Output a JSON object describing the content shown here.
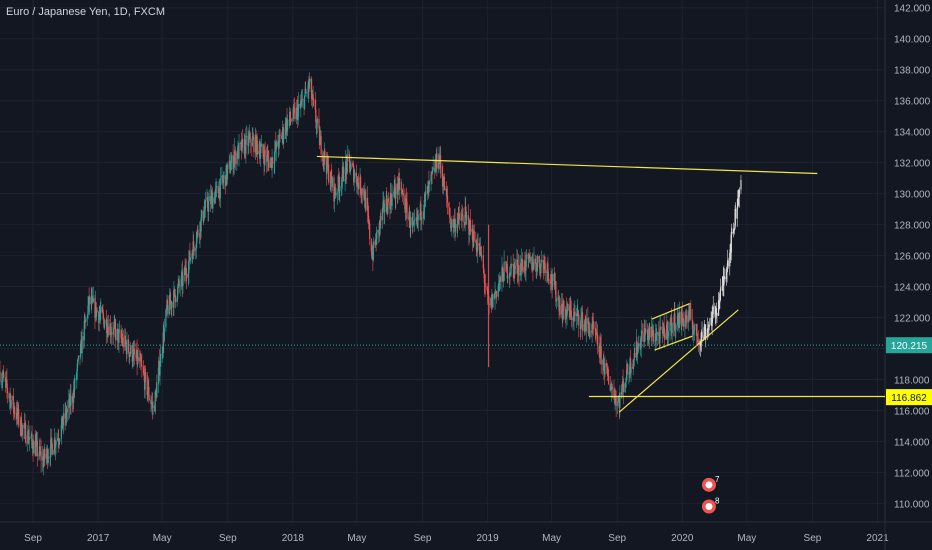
{
  "header": {
    "title": "Euro / Japanese Yen, 1D, FXCM"
  },
  "colors": {
    "background": "#131722",
    "grid": "#1e2230",
    "up": "#26a69a",
    "down": "#ef5350",
    "projection": "#d9d9d9",
    "trendline": "#f2e34c",
    "current_line": "#26a69a",
    "current_badge": "#26a69a",
    "level_badge": "#ffff00",
    "axis_text": "#b2b5be",
    "event_badge": "#ef5350"
  },
  "chart_data": {
    "type": "candlestick",
    "title": "Euro / Japanese Yen, 1D, FXCM",
    "y_axis": {
      "ticks": [
        "142.000",
        "140.000",
        "138.000",
        "136.000",
        "134.000",
        "132.000",
        "130.000",
        "128.000",
        "126.000",
        "124.000",
        "122.000",
        "120.000",
        "118.000",
        "116.000",
        "114.000",
        "112.000",
        "110.000"
      ],
      "range": [
        108.8,
        142.5
      ],
      "current_price": "120.215",
      "marked_level": "116.862"
    },
    "x_axis": {
      "labels": [
        "Sep",
        "2017",
        "May",
        "Sep",
        "2018",
        "May",
        "Sep",
        "2019",
        "May",
        "Sep",
        "2020",
        "May",
        "Sep",
        "2021"
      ],
      "start": "2016-07-01",
      "end": "2021-01-15"
    },
    "price_path": [
      [
        "2016-07-01",
        118.5
      ],
      [
        "2016-08-10",
        115.0
      ],
      [
        "2016-09-20",
        112.8
      ],
      [
        "2016-10-20",
        114.5
      ],
      [
        "2016-11-15",
        117.0
      ],
      [
        "2016-12-15",
        123.0
      ],
      [
        "2017-01-20",
        121.5
      ],
      [
        "2017-02-15",
        120.5
      ],
      [
        "2017-03-20",
        119.0
      ],
      [
        "2017-04-15",
        116.0
      ],
      [
        "2017-05-10",
        122.5
      ],
      [
        "2017-06-10",
        124.5
      ],
      [
        "2017-07-20",
        129.0
      ],
      [
        "2017-08-20",
        130.5
      ],
      [
        "2017-09-15",
        132.5
      ],
      [
        "2017-10-15",
        133.5
      ],
      [
        "2017-11-20",
        132.0
      ],
      [
        "2017-12-20",
        134.5
      ],
      [
        "2018-01-15",
        135.5
      ],
      [
        "2018-02-01",
        137.0
      ],
      [
        "2018-02-20",
        133.5
      ],
      [
        "2018-03-20",
        130.0
      ],
      [
        "2018-04-15",
        132.0
      ],
      [
        "2018-05-15",
        130.0
      ],
      [
        "2018-05-30",
        126.0
      ],
      [
        "2018-06-20",
        129.0
      ],
      [
        "2018-07-20",
        130.5
      ],
      [
        "2018-08-15",
        127.5
      ],
      [
        "2018-09-15",
        130.5
      ],
      [
        "2018-10-01",
        132.5
      ],
      [
        "2018-10-25",
        128.0
      ],
      [
        "2018-11-20",
        128.5
      ],
      [
        "2018-12-20",
        126.0
      ],
      [
        "2019-01-03",
        122.5
      ],
      [
        "2019-02-01",
        125.0
      ],
      [
        "2019-03-20",
        125.5
      ],
      [
        "2019-04-20",
        125.5
      ],
      [
        "2019-05-20",
        122.5
      ],
      [
        "2019-06-20",
        122.0
      ],
      [
        "2019-07-20",
        121.0
      ],
      [
        "2019-08-15",
        118.0
      ],
      [
        "2019-09-03",
        116.5
      ],
      [
        "2019-09-20",
        118.5
      ],
      [
        "2019-10-20",
        121.0
      ],
      [
        "2019-11-20",
        120.8
      ],
      [
        "2019-12-20",
        121.8
      ],
      [
        "2020-01-15",
        122.0
      ],
      [
        "2020-02-01",
        120.5
      ]
    ],
    "projection_path": [
      [
        "2020-02-01",
        120.5
      ],
      [
        "2020-02-20",
        121.5
      ],
      [
        "2020-03-10",
        123.0
      ],
      [
        "2020-03-25",
        125.5
      ],
      [
        "2020-04-05",
        127.5
      ],
      [
        "2020-04-15",
        130.0
      ],
      [
        "2020-04-20",
        131.0
      ]
    ],
    "trendlines": [
      {
        "from": [
          "2018-02-15",
          132.4
        ],
        "to": [
          "2020-09-10",
          131.3
        ]
      },
      {
        "from": [
          "2019-07-10",
          116.9
        ],
        "to": [
          "2021-01-15",
          116.9
        ]
      },
      {
        "from": [
          "2019-09-05",
          115.9
        ],
        "to": [
          "2020-04-15",
          122.5
        ]
      },
      {
        "from": [
          "2019-11-05",
          121.9
        ],
        "to": [
          "2020-01-15",
          122.9
        ]
      },
      {
        "from": [
          "2019-11-10",
          119.9
        ],
        "to": [
          "2020-01-20",
          120.8
        ]
      }
    ],
    "events": [
      {
        "date": "2020-02-20",
        "price": 111.2,
        "label": "7"
      },
      {
        "date": "2020-02-20",
        "price": 109.8,
        "label": "8"
      }
    ]
  }
}
